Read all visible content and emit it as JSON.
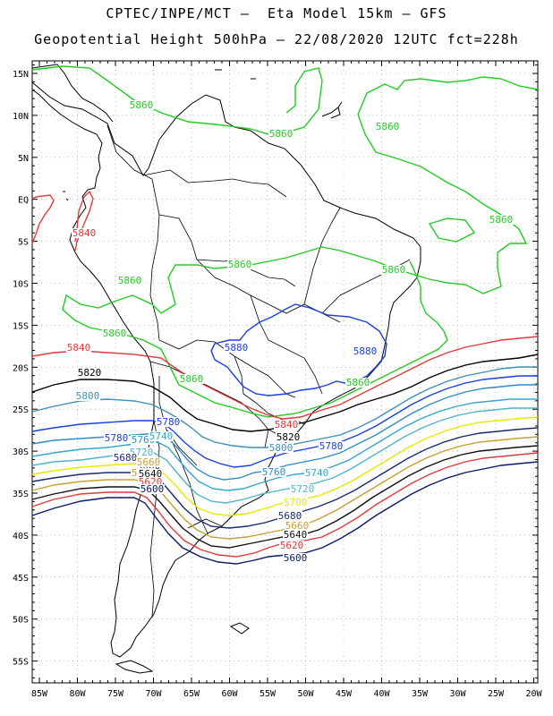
{
  "header": {
    "line1": "CPTEC/INPE/MCT –  Eta Model 15km – GFS",
    "line2": "Geopotential Height 500hPa – 22/08/2020 12UTC fct=228h"
  },
  "axes": {
    "lat_labels": [
      "15N",
      "10N",
      "5N",
      "EQ",
      "5S",
      "10S",
      "15S",
      "20S",
      "25S",
      "30S",
      "35S",
      "40S",
      "45S",
      "50S",
      "55S"
    ],
    "lon_labels": [
      "85W",
      "80W",
      "75W",
      "70W",
      "65W",
      "60W",
      "55W",
      "50W",
      "45W",
      "40W",
      "35W",
      "30W",
      "25W",
      "20W"
    ]
  },
  "colors": {
    "c5860": "#22cc22",
    "c5840": "#e03c3c",
    "c5820": "#000000",
    "c5800": "#3e8fb8",
    "c5780": "#1a3fe0",
    "c5760": "#2f8cc8",
    "c5740": "#33a8cc",
    "c5720": "#4fb6c8",
    "c5700": "#e8e800",
    "c5680": "#1a2a70",
    "c5660": "#c8a030",
    "c5640": "#111111",
    "c5620": "#e03c3c",
    "c5600": "#0a1a66",
    "coast": "#000000",
    "grid": "#999999"
  },
  "contour_labels": [
    {
      "key": "l1",
      "text": "5860"
    },
    {
      "key": "l2",
      "text": "5860"
    },
    {
      "key": "l3",
      "text": "5860"
    },
    {
      "key": "l4",
      "text": "5860"
    },
    {
      "key": "l5",
      "text": "5860"
    },
    {
      "key": "l6",
      "text": "5860"
    },
    {
      "key": "l7",
      "text": "5860"
    },
    {
      "key": "l8",
      "text": "5860"
    },
    {
      "key": "l9",
      "text": "5860"
    },
    {
      "key": "l10",
      "text": "5860"
    },
    {
      "key": "l11",
      "text": "5840"
    },
    {
      "key": "l12",
      "text": "5840"
    },
    {
      "key": "l13",
      "text": "5820"
    },
    {
      "key": "l14",
      "text": "5800"
    },
    {
      "key": "l15",
      "text": "5880"
    },
    {
      "key": "l16",
      "text": "5880"
    },
    {
      "key": "l17",
      "text": "5840"
    },
    {
      "key": "l18",
      "text": "5820"
    },
    {
      "key": "l19",
      "text": "5800"
    },
    {
      "key": "l20",
      "text": "5780"
    },
    {
      "key": "l21",
      "text": "5780"
    },
    {
      "key": "l22",
      "text": "5780"
    },
    {
      "key": "l23",
      "text": "5760"
    },
    {
      "key": "l24",
      "text": "5740"
    },
    {
      "key": "l25",
      "text": "5760"
    },
    {
      "key": "l26",
      "text": "5740"
    },
    {
      "key": "l27",
      "text": "5720"
    },
    {
      "key": "l28",
      "text": "5720"
    },
    {
      "key": "l29",
      "text": "5700"
    },
    {
      "key": "l30",
      "text": "5680"
    },
    {
      "key": "l31",
      "text": "5660"
    },
    {
      "key": "l32",
      "text": "5640"
    },
    {
      "key": "l33",
      "text": "5620"
    },
    {
      "key": "l34",
      "text": "5600"
    },
    {
      "key": "l35",
      "text": "5700"
    },
    {
      "key": "l36",
      "text": "5680"
    },
    {
      "key": "l37",
      "text": "5660"
    },
    {
      "key": "l38",
      "text": "5640"
    },
    {
      "key": "l39",
      "text": "5620"
    },
    {
      "key": "l40",
      "text": "5600"
    },
    {
      "key": "l41",
      "text": "5680"
    },
    {
      "key": "l42",
      "text": "5660"
    }
  ]
}
